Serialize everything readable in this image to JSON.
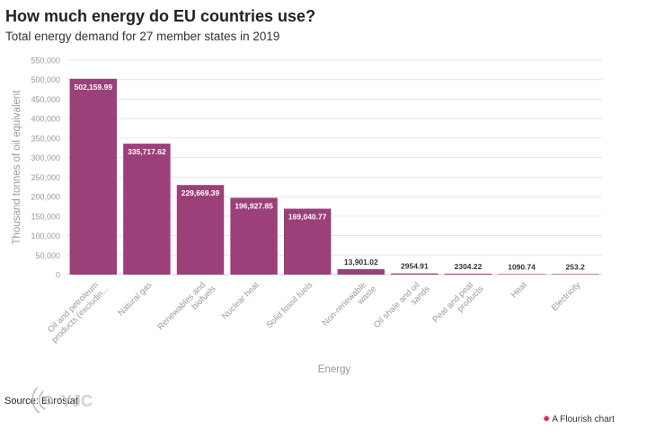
{
  "header": {
    "title": "How much energy do EU countries use?",
    "subtitle": "Total energy demand for 27 member states in 2019"
  },
  "footer": {
    "source": "Source: Eurostat",
    "flourish_credit": "A Flourish chart",
    "watermark_text": "YJC"
  },
  "colors": {
    "bar": "#9b4079",
    "grid": "#e6e6e6",
    "axis_text": "#999999"
  },
  "chart_data": {
    "type": "bar",
    "title": "How much energy do EU countries use?",
    "subtitle": "Total energy demand for 27 member states in 2019",
    "xlabel": "Energy",
    "ylabel": "Thousand tonnes of oil equivalent",
    "ylim": [
      0,
      550000
    ],
    "yticks": [
      "0",
      "50,000",
      "100,000",
      "150,000",
      "200,000",
      "250,000",
      "300,000",
      "350,000",
      "400,000",
      "450,000",
      "500,000",
      "550,000"
    ],
    "grid": true,
    "categories": [
      [
        "Oil and petroleum",
        "products (excludin..."
      ],
      [
        "Natural gas"
      ],
      [
        "Renewables and",
        "biofuels"
      ],
      [
        "Nuclear heat"
      ],
      [
        "Solid fossil fuels"
      ],
      [
        "Non-renewable",
        "waste"
      ],
      [
        "Oil shale and oil",
        "sands"
      ],
      [
        "Peat and peat",
        "products"
      ],
      [
        "Heat"
      ],
      [
        "Electricity"
      ]
    ],
    "values": [
      502159.99,
      335717.62,
      229669.39,
      196927.85,
      169040.77,
      13901.02,
      2954.91,
      2304.22,
      1090.74,
      253.2
    ],
    "labels": [
      "502,159.99",
      "335,717.62",
      "229,669.39",
      "196,927.85",
      "169,040.77",
      "13,901.02",
      "2954.91",
      "2304.22",
      "1090.74",
      "253.2"
    ]
  }
}
